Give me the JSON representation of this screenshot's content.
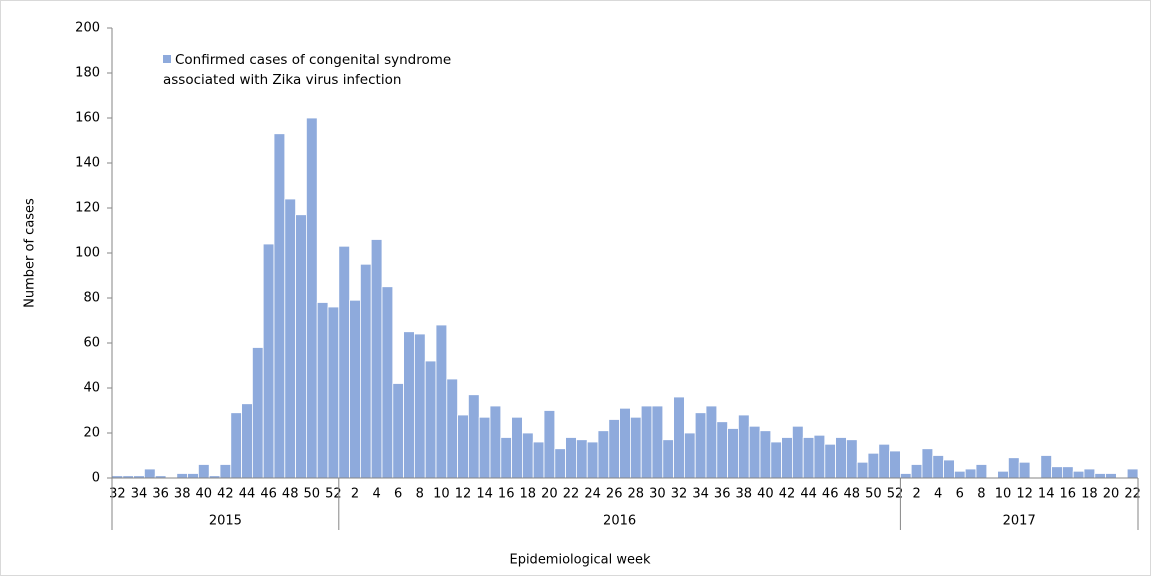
{
  "chart_data": {
    "type": "bar",
    "y_label": "Number of cases",
    "x_label": "Epidemiological week",
    "series_name": "Confirmed cases of congenital syndrome associated with Zika virus infection",
    "color": "#8eaadc",
    "ylim": [
      0,
      200
    ],
    "yticks": [
      0,
      20,
      40,
      60,
      80,
      100,
      120,
      140,
      160,
      180,
      200
    ],
    "years": [
      {
        "label": "2015",
        "weeks": [
          "32",
          null,
          "34",
          null,
          "36",
          null,
          "38",
          null,
          "40",
          null,
          "42",
          null,
          "44",
          null,
          "46",
          null,
          "48",
          null,
          "50",
          null,
          "52"
        ],
        "values": [
          1,
          1,
          1,
          4,
          1,
          0,
          2,
          2,
          6,
          1,
          6,
          29,
          33,
          58,
          104,
          153,
          124,
          117,
          160,
          78,
          76
        ]
      },
      {
        "label": "2016",
        "weeks": [
          null,
          "2",
          null,
          "4",
          null,
          "6",
          null,
          "8",
          null,
          "10",
          null,
          "12",
          null,
          "14",
          null,
          "16",
          null,
          "18",
          null,
          "20",
          null,
          "22",
          null,
          "24",
          null,
          "26",
          null,
          "28",
          null,
          "30",
          null,
          "32",
          null,
          "34",
          null,
          "36",
          null,
          "38",
          null,
          "40",
          null,
          "42",
          null,
          "44",
          null,
          "46",
          null,
          "48",
          null,
          "50",
          null,
          "52"
        ],
        "values": [
          103,
          79,
          95,
          106,
          85,
          42,
          65,
          64,
          52,
          68,
          44,
          28,
          37,
          27,
          32,
          18,
          27,
          20,
          16,
          30,
          13,
          18,
          17,
          16,
          21,
          26,
          31,
          27,
          32,
          32,
          17,
          36,
          20,
          29,
          32,
          25,
          22,
          28,
          23,
          21,
          16,
          18,
          23,
          18,
          19,
          15,
          18,
          17,
          7,
          11,
          15,
          12
        ]
      },
      {
        "label": "2017",
        "weeks": [
          null,
          "2",
          null,
          "4",
          null,
          "6",
          null,
          "8",
          null,
          "10",
          null,
          "12",
          null,
          "14",
          null,
          "16",
          null,
          "18",
          null,
          "20",
          null,
          "22"
        ],
        "values": [
          2,
          6,
          13,
          10,
          8,
          3,
          4,
          6,
          0,
          3,
          9,
          7,
          0,
          10,
          5,
          5,
          3,
          4,
          2,
          2,
          0,
          4
        ]
      }
    ]
  }
}
